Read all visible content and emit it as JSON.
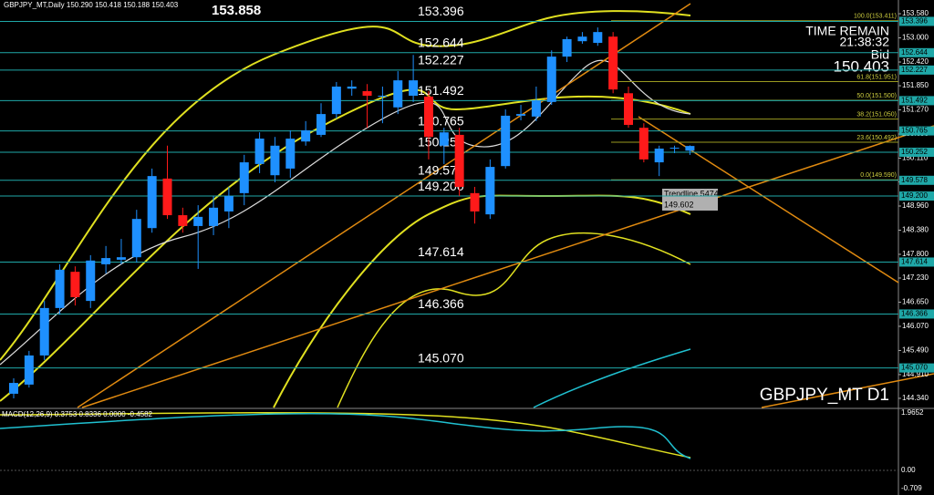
{
  "header": "GBPJPY_MT,Daily  150.290 150.418 150.188 150.403",
  "high_label": "153.858",
  "time_remain_label": "TIME REMAIN",
  "time_remain": "21:38:32",
  "bid_label": "Bid",
  "bid": "150.403",
  "symbol": "GBPJPY_MT D1",
  "trendline_label": "Trendline 54749",
  "trendline_value": "149.602",
  "chart_data": {
    "type": "candlestick",
    "open": [
      144.45,
      144.67,
      145.37,
      146.51,
      147.38,
      146.68,
      147.56,
      147.67,
      147.73,
      148.43,
      149.62,
      148.74,
      148.48,
      148.48,
      148.83,
      149.27,
      149.97,
      149.7,
      149.86,
      150.51,
      150.67,
      151.17,
      151.78,
      151.72,
      151.59,
      151.33,
      151.61,
      151.59,
      150.41,
      150.67,
      149.27,
      148.76,
      149.92,
      151.13,
      151.11,
      151.46,
      152.55,
      152.92,
      152.88,
      153.03,
      151.67,
      150.84,
      150.01,
      150.34,
      150.29
    ],
    "high": [
      144.82,
      145.48,
      146.68,
      147.56,
      147.51,
      147.78,
      148.0,
      148.17,
      148.87,
      149.86,
      150.41,
      148.92,
      148.98,
      149.2,
      149.42,
      150.19,
      150.73,
      150.62,
      150.78,
      151.0,
      151.43,
      151.94,
      151.98,
      151.89,
      151.83,
      152.2,
      152.59,
      151.72,
      150.84,
      150.84,
      149.42,
      150.08,
      151.28,
      151.39,
      151.83,
      152.7,
      153.03,
      153.14,
      153.25,
      153.14,
      151.83,
      150.95,
      150.41,
      150.41,
      150.418
    ],
    "low": [
      144.34,
      144.6,
      145.26,
      146.35,
      146.57,
      146.51,
      147.34,
      147.56,
      147.6,
      148.32,
      148.65,
      148.32,
      147.45,
      148.26,
      148.43,
      148.98,
      149.75,
      149.53,
      149.64,
      150.41,
      150.62,
      151.06,
      151.61,
      150.84,
      150.95,
      151.17,
      151.46,
      150.08,
      149.97,
      149.2,
      148.54,
      148.65,
      149.86,
      151.02,
      151.0,
      151.39,
      152.42,
      152.86,
      152.81,
      151.67,
      150.84,
      150.01,
      149.68,
      150.23,
      150.188
    ],
    "close": [
      144.71,
      145.37,
      146.51,
      147.43,
      146.77,
      147.65,
      147.71,
      147.73,
      148.65,
      149.68,
      148.74,
      148.48,
      148.7,
      148.92,
      149.2,
      150.01,
      150.58,
      150.41,
      150.58,
      150.78,
      151.17,
      151.83,
      151.83,
      151.61,
      151.61,
      151.98,
      151.98,
      150.62,
      150.73,
      149.42,
      148.83,
      149.9,
      151.13,
      151.17,
      151.5,
      152.55,
      152.97,
      153.03,
      153.14,
      151.76,
      150.91,
      150.08,
      150.34,
      150.36,
      150.403
    ],
    "ylim": [
      144.12,
      153.91
    ],
    "yticks": [
      {
        "value": 153.58,
        "label": "153.580"
      },
      {
        "value": 153,
        "label": "153.000"
      },
      {
        "value": 152.42,
        "label": "152.420"
      },
      {
        "value": 151.85,
        "label": "151.850"
      },
      {
        "value": 151.27,
        "label": "151.270"
      },
      {
        "value": 150.69,
        "label": "150.690"
      },
      {
        "value": 150.11,
        "label": "150.110"
      },
      {
        "value": 149.54,
        "label": "149.540"
      },
      {
        "value": 148.96,
        "label": "148.960"
      },
      {
        "value": 148.38,
        "label": "148.380"
      },
      {
        "value": 147.8,
        "label": "147.800"
      },
      {
        "value": 147.23,
        "label": "147.230"
      },
      {
        "value": 146.65,
        "label": "146.650"
      },
      {
        "value": 146.07,
        "label": "146.070"
      },
      {
        "value": 145.49,
        "label": "145.490"
      },
      {
        "value": 144.91,
        "label": "144.910"
      },
      {
        "value": 144.34,
        "label": "144.340"
      }
    ],
    "levels": [
      153.396,
      152.644,
      152.227,
      151.492,
      150.765,
      150.252,
      149.578,
      {
        "value": 149.2,
        "label": "149.200"
      },
      147.614,
      146.366,
      {
        "value": 145.07,
        "label": "145.070"
      }
    ],
    "fib_levels": [
      {
        "value": 153.411,
        "label": "100.0(153.411)"
      },
      {
        "value": 151.951,
        "label": "61.8(151.951)"
      },
      {
        "value": 151.5,
        "label": "50.0(151.500)"
      },
      {
        "value": 151.05,
        "label": "38.2(151.050)"
      },
      {
        "value": 150.492,
        "label": "23.6(150.492)"
      },
      {
        "value": 149.59,
        "label": "0.0(149.590)"
      }
    ]
  },
  "macd": {
    "label": "MACD(12,26,9) 0.3753 0.8336 0.0000 -0.4582",
    "ticks": [
      "1.9652",
      "0.00",
      "-0.709"
    ]
  }
}
